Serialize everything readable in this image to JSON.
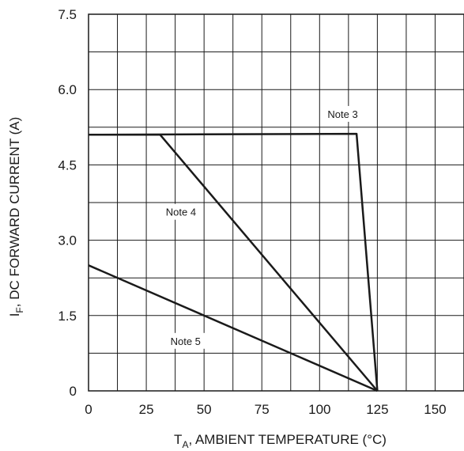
{
  "chart_data": {
    "type": "line",
    "xlabel": {
      "main": "T",
      "sub": "A",
      "rest": ", AMBIENT TEMPERATURE (°C)"
    },
    "ylabel": {
      "main": "I",
      "sub": "F",
      "rest": ", DC FORWARD CURRENT (A)"
    },
    "xlim": [
      0,
      162.5
    ],
    "ylim": [
      0,
      7.5
    ],
    "x_ticks": [
      0,
      25,
      50,
      75,
      100,
      125,
      150
    ],
    "x_tick_labels": [
      "0",
      "25",
      "50",
      "75",
      "100",
      "125",
      "150"
    ],
    "y_ticks": [
      0,
      1.5,
      3.0,
      4.5,
      6.0,
      7.5
    ],
    "y_tick_labels": [
      "0",
      "1.5",
      "3.0",
      "4.5",
      "6.0",
      "7.5"
    ],
    "grid": true,
    "series": [
      {
        "name": "Note 3",
        "x": [
          0,
          116,
          125
        ],
        "y": [
          5.1,
          5.12,
          0
        ]
      },
      {
        "name": "Note 4",
        "x": [
          0,
          31,
          125
        ],
        "y": [
          5.1,
          5.1,
          0
        ]
      },
      {
        "name": "Note 5",
        "x": [
          0,
          125
        ],
        "y": [
          2.5,
          0
        ]
      }
    ],
    "annotations": [
      {
        "text": "Note 3",
        "x": 110,
        "y": 5.5
      },
      {
        "text": "Note 4",
        "x": 40,
        "y": 3.55
      },
      {
        "text": "Note 5",
        "x": 42,
        "y": 0.98
      }
    ]
  }
}
